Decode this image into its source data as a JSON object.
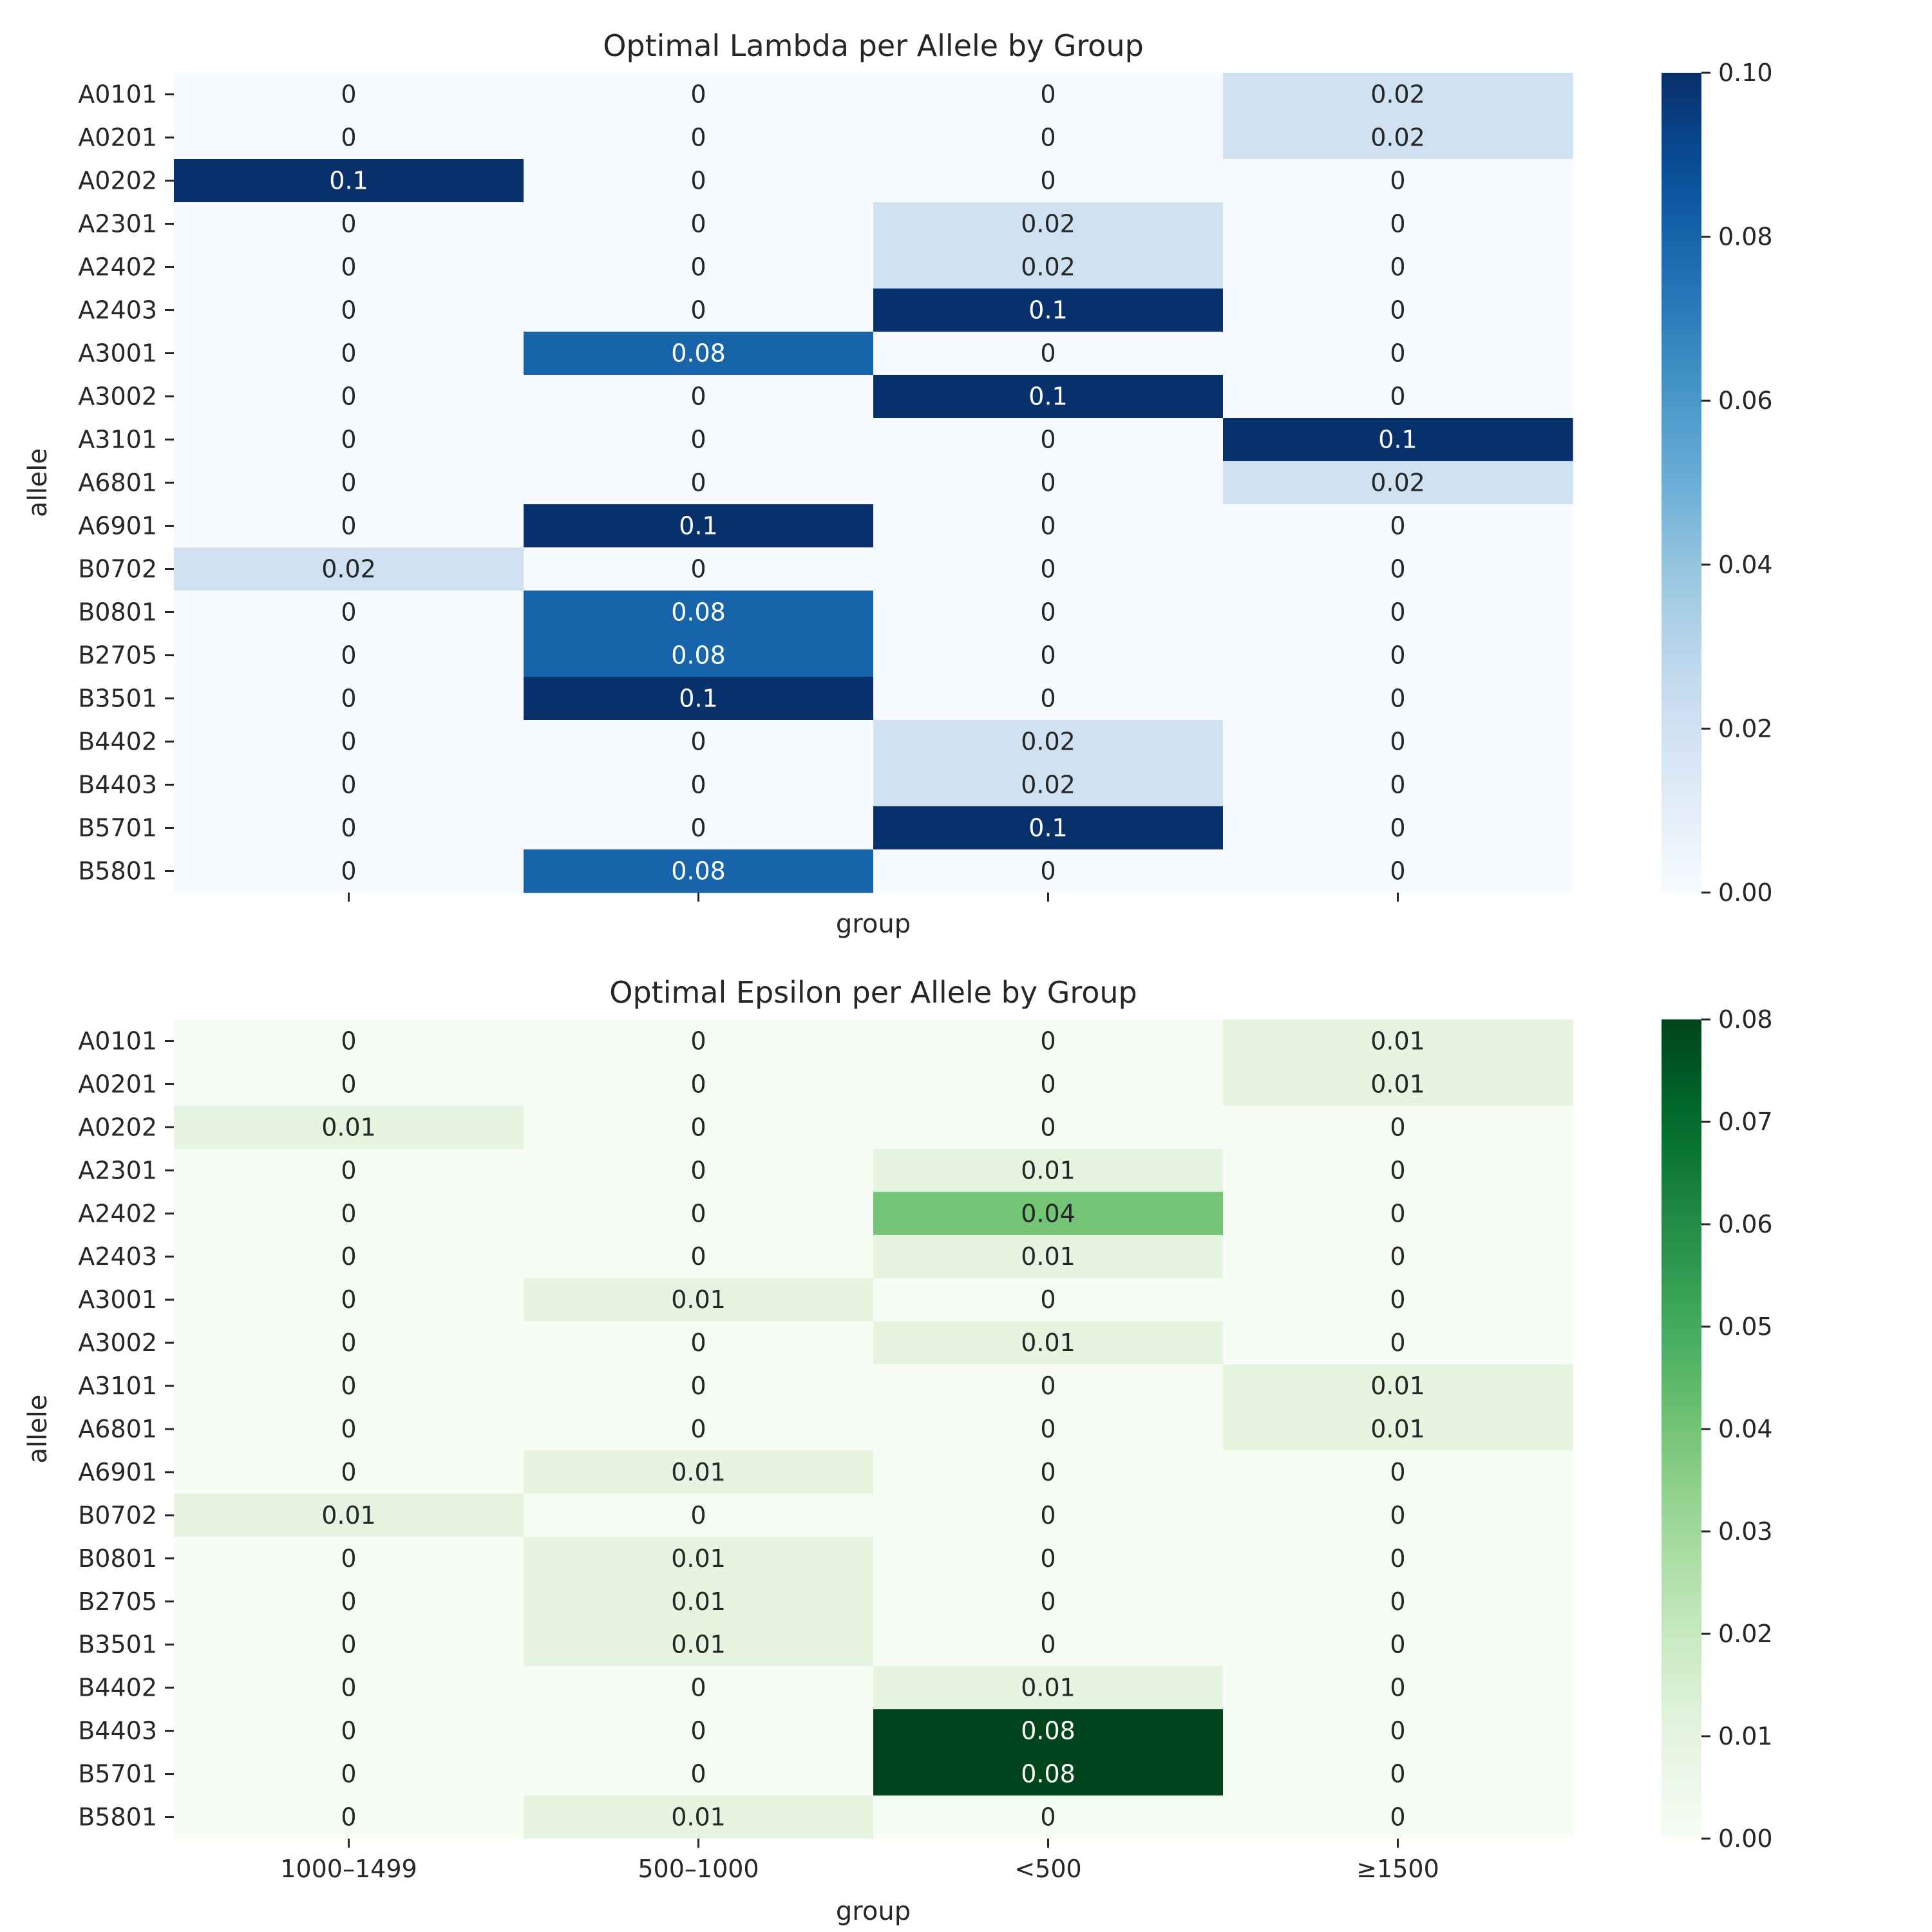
{
  "chart_data": [
    {
      "type": "heatmap",
      "title": "Optimal Lambda per Allele by Group",
      "xlabel": "group",
      "ylabel": "allele",
      "colormap": "Blues",
      "colors": {
        "low": "#f7fbff",
        "high": "#08306b"
      },
      "vmin": 0,
      "vmax": 0.1,
      "colorbar_ticks": [
        "0.00",
        "0.02",
        "0.04",
        "0.06",
        "0.08",
        "0.10"
      ],
      "show_x_tick_labels": false,
      "columns": [
        "1000–1499",
        "500–1000",
        "<500",
        "≥1500"
      ],
      "rows": [
        "A0101",
        "A0201",
        "A0202",
        "A2301",
        "A2402",
        "A2403",
        "A3001",
        "A3002",
        "A3101",
        "A6801",
        "A6901",
        "B0702",
        "B0801",
        "B2705",
        "B3501",
        "B4402",
        "B4403",
        "B5701",
        "B5801"
      ],
      "values": [
        [
          0,
          0,
          0,
          0.02
        ],
        [
          0,
          0,
          0,
          0.02
        ],
        [
          0.1,
          0,
          0,
          0
        ],
        [
          0,
          0,
          0.02,
          0
        ],
        [
          0,
          0,
          0.02,
          0
        ],
        [
          0,
          0,
          0.1,
          0
        ],
        [
          0,
          0.08,
          0,
          0
        ],
        [
          0,
          0,
          0.1,
          0
        ],
        [
          0,
          0,
          0,
          0.1
        ],
        [
          0,
          0,
          0,
          0.02
        ],
        [
          0,
          0.1,
          0,
          0
        ],
        [
          0.02,
          0,
          0,
          0
        ],
        [
          0,
          0.08,
          0,
          0
        ],
        [
          0,
          0.08,
          0,
          0
        ],
        [
          0,
          0.1,
          0,
          0
        ],
        [
          0,
          0,
          0.02,
          0
        ],
        [
          0,
          0,
          0.02,
          0
        ],
        [
          0,
          0,
          0.1,
          0
        ],
        [
          0,
          0.08,
          0,
          0
        ]
      ]
    },
    {
      "type": "heatmap",
      "title": "Optimal Epsilon per Allele by Group",
      "xlabel": "group",
      "ylabel": "allele",
      "colormap": "Greens",
      "colors": {
        "low": "#f7fcf5",
        "high": "#00441b"
      },
      "vmin": 0,
      "vmax": 0.08,
      "colorbar_ticks": [
        "0.00",
        "0.01",
        "0.02",
        "0.03",
        "0.04",
        "0.05",
        "0.06",
        "0.07",
        "0.08"
      ],
      "show_x_tick_labels": true,
      "columns": [
        "1000–1499",
        "500–1000",
        "<500",
        "≥1500"
      ],
      "rows": [
        "A0101",
        "A0201",
        "A0202",
        "A2301",
        "A2402",
        "A2403",
        "A3001",
        "A3002",
        "A3101",
        "A6801",
        "A6901",
        "B0702",
        "B0801",
        "B2705",
        "B3501",
        "B4402",
        "B4403",
        "B5701",
        "B5801"
      ],
      "values": [
        [
          0,
          0,
          0,
          0.01
        ],
        [
          0,
          0,
          0,
          0.01
        ],
        [
          0.01,
          0,
          0,
          0
        ],
        [
          0,
          0,
          0.01,
          0
        ],
        [
          0,
          0,
          0.04,
          0
        ],
        [
          0,
          0,
          0.01,
          0
        ],
        [
          0,
          0.01,
          0,
          0
        ],
        [
          0,
          0,
          0.01,
          0
        ],
        [
          0,
          0,
          0,
          0.01
        ],
        [
          0,
          0,
          0,
          0.01
        ],
        [
          0,
          0.01,
          0,
          0
        ],
        [
          0.01,
          0,
          0,
          0
        ],
        [
          0,
          0.01,
          0,
          0
        ],
        [
          0,
          0.01,
          0,
          0
        ],
        [
          0,
          0.01,
          0,
          0
        ],
        [
          0,
          0,
          0.01,
          0
        ],
        [
          0,
          0,
          0.08,
          0
        ],
        [
          0,
          0,
          0.08,
          0
        ],
        [
          0,
          0.01,
          0,
          0
        ]
      ]
    }
  ]
}
